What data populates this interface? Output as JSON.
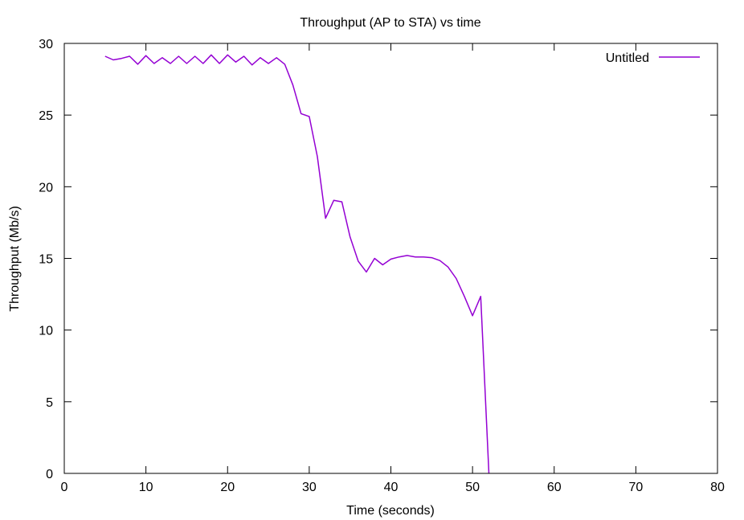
{
  "chart_data": {
    "type": "line",
    "title": "Throughput (AP to STA) vs time",
    "xlabel": "Time (seconds)",
    "ylabel": "Throughput (Mb/s)",
    "xlim": [
      0,
      80
    ],
    "ylim": [
      0,
      30
    ],
    "xticks": [
      "0",
      "10",
      "20",
      "30",
      "40",
      "50",
      "60",
      "70",
      "80"
    ],
    "yticks": [
      "0",
      "5",
      "10",
      "15",
      "20",
      "25",
      "30"
    ],
    "grid": false,
    "legend_position": "top-right",
    "series": [
      {
        "name": "Untitled",
        "color": "#9400d3",
        "x": [
          5,
          6,
          7,
          8,
          9,
          10,
          11,
          12,
          13,
          14,
          15,
          16,
          17,
          18,
          19,
          20,
          21,
          22,
          23,
          24,
          25,
          26,
          27,
          28,
          29,
          30,
          31,
          32,
          33,
          34,
          35,
          36,
          37,
          38,
          39,
          40,
          41,
          42,
          43,
          44,
          45,
          46,
          47,
          48,
          49,
          50,
          51,
          52
        ],
        "y": [
          29.1,
          28.85,
          28.95,
          29.1,
          28.55,
          29.15,
          28.6,
          29.0,
          28.6,
          29.1,
          28.6,
          29.1,
          28.6,
          29.2,
          28.6,
          29.2,
          28.7,
          29.1,
          28.5,
          29.0,
          28.6,
          29.0,
          28.55,
          27.1,
          25.1,
          24.9,
          22.1,
          17.8,
          19.05,
          18.95,
          16.5,
          14.8,
          14.05,
          15.0,
          14.55,
          14.95,
          15.1,
          15.2,
          15.1,
          15.1,
          15.05,
          14.85,
          14.4,
          13.6,
          12.35,
          11.0,
          12.35,
          0
        ]
      }
    ]
  }
}
